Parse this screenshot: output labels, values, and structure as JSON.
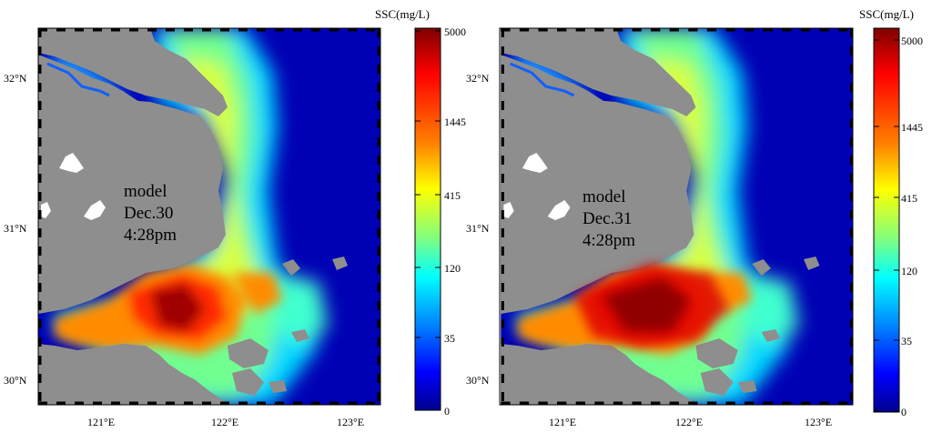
{
  "panels": [
    {
      "id": "left",
      "annotation": [
        "model",
        "Dec.30",
        "4:28pm"
      ],
      "lat_labels": [
        "32°N",
        "31°N",
        "30°N"
      ],
      "lon_labels": [
        "121°E",
        "122°E",
        "123°E"
      ],
      "colorbar": {
        "title": "SSC(mg/L)",
        "ticks": [
          "5000",
          "1445",
          "415",
          "120",
          "35",
          "0"
        ]
      }
    },
    {
      "id": "right",
      "annotation": [
        "model",
        "Dec.31",
        "4:28pm"
      ],
      "lat_labels": [
        "32°N",
        "31°N",
        "30°N"
      ],
      "lon_labels": [
        "121°E",
        "122°E",
        "123°E"
      ],
      "colorbar": {
        "title": "SSC(mg/L)",
        "ticks": [
          "5000",
          "1445",
          "415",
          "120",
          "35",
          "0"
        ]
      }
    }
  ],
  "colors": {
    "land": "#8e8e8e",
    "ocean_deep": "#0000b4",
    "colormap": [
      "#7f0000",
      "#ff0000",
      "#ff8000",
      "#ffff00",
      "#80ff80",
      "#00ffff",
      "#0080ff",
      "#0000ff",
      "#00008f"
    ]
  }
}
